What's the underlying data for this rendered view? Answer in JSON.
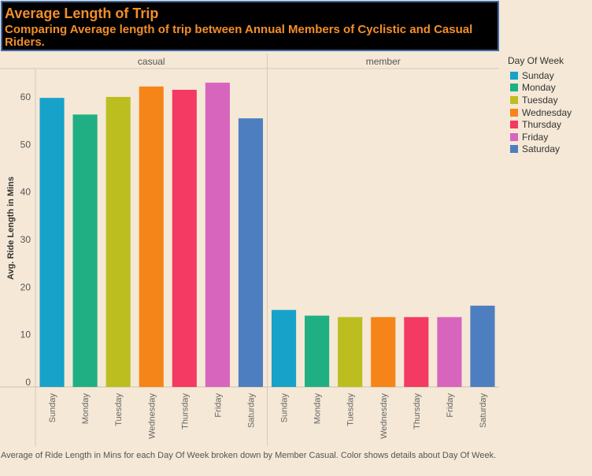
{
  "title": "Average Length of Trip",
  "subtitle": "Comparing Average length of  trip between Annual  Members of Cyclistic and Casual Riders.",
  "caption": "Average of Ride Length in Mins for each Day Of Week broken down by Member Casual.  Color shows details about Day Of Week.",
  "legend": {
    "title": "Day Of Week",
    "items": [
      {
        "label": "Sunday",
        "color": "#17a2c9"
      },
      {
        "label": "Monday",
        "color": "#1faf82"
      },
      {
        "label": "Tuesday",
        "color": "#bcbe20"
      },
      {
        "label": "Wednesday",
        "color": "#f58518"
      },
      {
        "label": "Thursday",
        "color": "#f43a62"
      },
      {
        "label": "Friday",
        "color": "#d865bd"
      },
      {
        "label": "Saturday",
        "color": "#4d7ec0"
      }
    ]
  },
  "chart_data": {
    "type": "bar",
    "ylabel": "Avg. Ride Length in Mins",
    "xlabel": "",
    "ylim": [
      0,
      65
    ],
    "yticks": [
      0,
      10,
      20,
      30,
      40,
      50,
      60
    ],
    "categories": [
      "Sunday",
      "Monday",
      "Tuesday",
      "Wednesday",
      "Thursday",
      "Friday",
      "Saturday"
    ],
    "panels": [
      {
        "name": "casual",
        "values": [
          59.8,
          56.3,
          60.0,
          62.2,
          61.5,
          63.0,
          55.5
        ]
      },
      {
        "name": "member",
        "values": [
          15.2,
          14.0,
          13.7,
          13.7,
          13.7,
          13.7,
          16.1
        ]
      }
    ]
  }
}
